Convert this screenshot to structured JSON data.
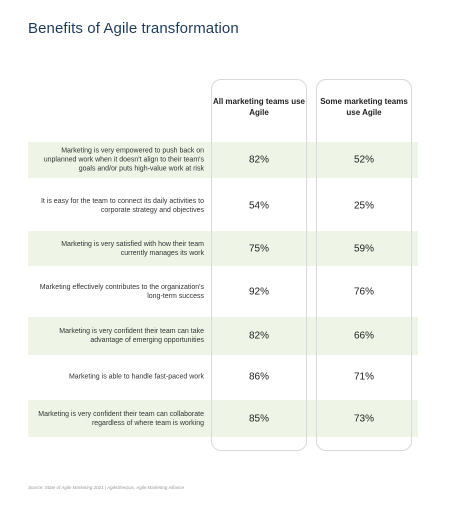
{
  "title": "Benefits of Agile transformation",
  "columns": [
    "All marketing teams use Agile",
    "Some marketing teams use Agile"
  ],
  "chart_data": {
    "type": "table",
    "title": "Benefits of Agile transformation",
    "columns": [
      "All marketing teams use Agile",
      "Some marketing teams use Agile"
    ],
    "rows": [
      {
        "label": "Marketing is very empowered to push back on unplanned work when it doesn't align to their team's goals and/or puts high-value work at risk",
        "values": [
          "82%",
          "52%"
        ],
        "shaded": true
      },
      {
        "label": "It is easy for the team to connect its daily activities to corporate strategy and objectives",
        "values": [
          "54%",
          "25%"
        ],
        "shaded": false
      },
      {
        "label": "Marketing is very satisfied with how their team currently manages its work",
        "values": [
          "75%",
          "59%"
        ],
        "shaded": true
      },
      {
        "label": "Marketing effectively contributes to the organization's long-term success",
        "values": [
          "92%",
          "76%"
        ],
        "shaded": false
      },
      {
        "label": "Marketing is very confident their team can take advantage of emerging opportunities",
        "values": [
          "82%",
          "66%"
        ],
        "shaded": true
      },
      {
        "label": "Marketing is able to handle fast-paced work",
        "values": [
          "86%",
          "71%"
        ],
        "shaded": false
      },
      {
        "label": "Marketing is very confident their team can collaborate regardless of where team is working",
        "values": [
          "85%",
          "73%"
        ],
        "shaded": true
      }
    ]
  },
  "source": "Source: State of Agile Marketing 2021 | AgileSherpas, Agile Marketing Alliance",
  "colors": {
    "title": "#1f3b5a",
    "row_shade": "#eef5e6",
    "column_border": "#d9d9d9"
  }
}
